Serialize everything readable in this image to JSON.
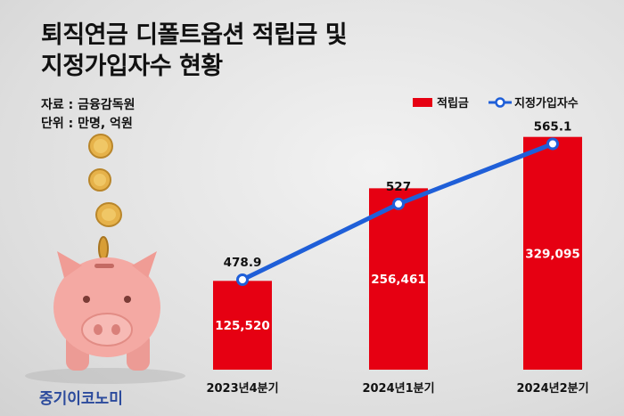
{
  "header": {
    "title_line1": "퇴직연금 디폴트옵션 적립금 및",
    "title_line2": "지정가입자수 현황",
    "source": "자료 : 금융감독원",
    "unit": "단위 : 만명, 억원"
  },
  "brand": "중기이코노미",
  "illustration": {
    "piggy_bank_color": "#f4a9a3",
    "coin_color": "#e6b24a"
  },
  "chart_data": {
    "type": "bar",
    "categories": [
      "2023년4분기",
      "2024년1분기",
      "2024년2분기"
    ],
    "series": [
      {
        "name": "적립금",
        "type": "bar",
        "values": [
          125520,
          256461,
          329095
        ],
        "labels": [
          "125,520",
          "256,461",
          "329,095"
        ],
        "color": "#e60012"
      },
      {
        "name": "지정가입자수",
        "type": "line",
        "values": [
          478.9,
          527,
          565.1
        ],
        "labels": [
          "478.9",
          "527",
          "565.1"
        ],
        "color": "#1f5fd8"
      }
    ],
    "legend_position": "top-right",
    "grid": false
  }
}
